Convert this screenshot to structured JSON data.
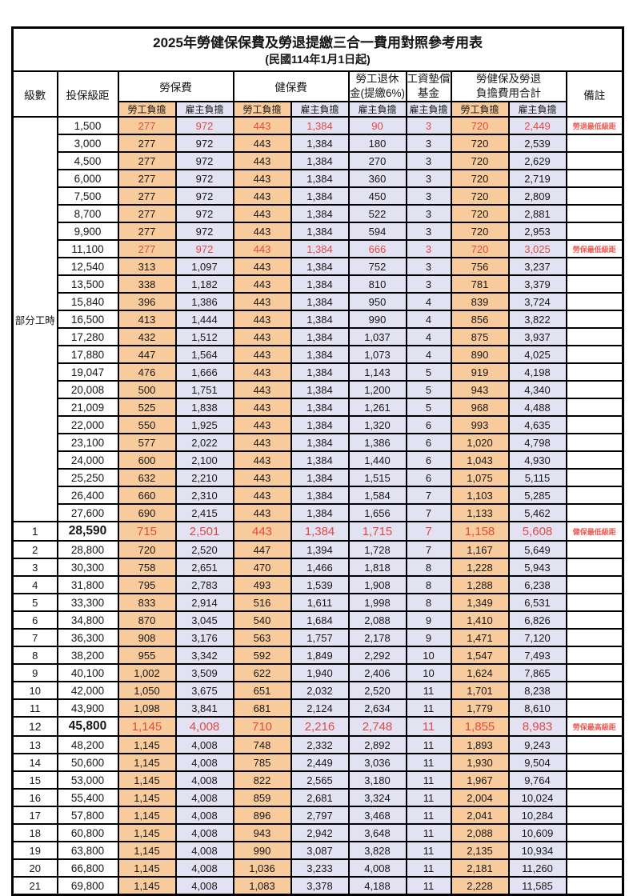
{
  "title": "2025年勞健保保費及勞退提繳三合一費用對照參考用表",
  "subtitle": "(民國114年1月1日起)",
  "colors": {
    "employee_share_bg": "#F8CB9C",
    "employer_share_bg": "#E2E2F2",
    "highlight_text": "#E14A42",
    "remark_text": "#EF5A52",
    "border": "#000000"
  },
  "header": {
    "grade": "級數",
    "bracket": "投保級距",
    "labor_fee": "勞保費",
    "health_fee": "健保費",
    "pension_line1": "勞工退休",
    "pension_line2": "金(提繳6%)",
    "arrears_line1": "工資墊償",
    "arrears_line2": "基金",
    "total_line1": "勞健保及勞退",
    "total_line2": "負擔費用合計",
    "remark": "備註",
    "employee_share": "勞工負擔",
    "employer_share": "雇主負擔"
  },
  "section_label": "部分工時",
  "section_rowspan": 23,
  "rows": [
    {
      "g": "",
      "b": "1,500",
      "v": [
        "277",
        "972",
        "443",
        "1,384",
        "90",
        "3",
        "720",
        "2,449"
      ],
      "r": "勞退最低級距",
      "hl": true,
      "big": false
    },
    {
      "g": "",
      "b": "3,000",
      "v": [
        "277",
        "972",
        "443",
        "1,384",
        "180",
        "3",
        "720",
        "2,539"
      ],
      "r": "",
      "hl": false,
      "big": false
    },
    {
      "g": "",
      "b": "4,500",
      "v": [
        "277",
        "972",
        "443",
        "1,384",
        "270",
        "3",
        "720",
        "2,629"
      ],
      "r": "",
      "hl": false,
      "big": false
    },
    {
      "g": "",
      "b": "6,000",
      "v": [
        "277",
        "972",
        "443",
        "1,384",
        "360",
        "3",
        "720",
        "2,719"
      ],
      "r": "",
      "hl": false,
      "big": false
    },
    {
      "g": "",
      "b": "7,500",
      "v": [
        "277",
        "972",
        "443",
        "1,384",
        "450",
        "3",
        "720",
        "2,809"
      ],
      "r": "",
      "hl": false,
      "big": false
    },
    {
      "g": "",
      "b": "8,700",
      "v": [
        "277",
        "972",
        "443",
        "1,384",
        "522",
        "3",
        "720",
        "2,881"
      ],
      "r": "",
      "hl": false,
      "big": false
    },
    {
      "g": "",
      "b": "9,900",
      "v": [
        "277",
        "972",
        "443",
        "1,384",
        "594",
        "3",
        "720",
        "2,953"
      ],
      "r": "",
      "hl": false,
      "big": false
    },
    {
      "g": "",
      "b": "11,100",
      "v": [
        "277",
        "972",
        "443",
        "1,384",
        "666",
        "3",
        "720",
        "3,025"
      ],
      "r": "勞保最低級距",
      "hl": true,
      "big": false
    },
    {
      "g": "",
      "b": "12,540",
      "v": [
        "313",
        "1,097",
        "443",
        "1,384",
        "752",
        "3",
        "756",
        "3,237"
      ],
      "r": "",
      "hl": false,
      "big": false
    },
    {
      "g": "",
      "b": "13,500",
      "v": [
        "338",
        "1,182",
        "443",
        "1,384",
        "810",
        "3",
        "781",
        "3,379"
      ],
      "r": "",
      "hl": false,
      "big": false
    },
    {
      "g": "",
      "b": "15,840",
      "v": [
        "396",
        "1,386",
        "443",
        "1,384",
        "950",
        "4",
        "839",
        "3,724"
      ],
      "r": "",
      "hl": false,
      "big": false
    },
    {
      "g": "",
      "b": "16,500",
      "v": [
        "413",
        "1,444",
        "443",
        "1,384",
        "990",
        "4",
        "856",
        "3,822"
      ],
      "r": "",
      "hl": false,
      "big": false
    },
    {
      "g": "",
      "b": "17,280",
      "v": [
        "432",
        "1,512",
        "443",
        "1,384",
        "1,037",
        "4",
        "875",
        "3,937"
      ],
      "r": "",
      "hl": false,
      "big": false
    },
    {
      "g": "",
      "b": "17,880",
      "v": [
        "447",
        "1,564",
        "443",
        "1,384",
        "1,073",
        "4",
        "890",
        "4,025"
      ],
      "r": "",
      "hl": false,
      "big": false
    },
    {
      "g": "",
      "b": "19,047",
      "v": [
        "476",
        "1,666",
        "443",
        "1,384",
        "1,143",
        "5",
        "919",
        "4,198"
      ],
      "r": "",
      "hl": false,
      "big": false
    },
    {
      "g": "",
      "b": "20,008",
      "v": [
        "500",
        "1,751",
        "443",
        "1,384",
        "1,200",
        "5",
        "943",
        "4,340"
      ],
      "r": "",
      "hl": false,
      "big": false
    },
    {
      "g": "",
      "b": "21,009",
      "v": [
        "525",
        "1,838",
        "443",
        "1,384",
        "1,261",
        "5",
        "968",
        "4,488"
      ],
      "r": "",
      "hl": false,
      "big": false
    },
    {
      "g": "",
      "b": "22,000",
      "v": [
        "550",
        "1,925",
        "443",
        "1,384",
        "1,320",
        "6",
        "993",
        "4,635"
      ],
      "r": "",
      "hl": false,
      "big": false
    },
    {
      "g": "",
      "b": "23,100",
      "v": [
        "577",
        "2,022",
        "443",
        "1,384",
        "1,386",
        "6",
        "1,020",
        "4,798"
      ],
      "r": "",
      "hl": false,
      "big": false
    },
    {
      "g": "",
      "b": "24,000",
      "v": [
        "600",
        "2,100",
        "443",
        "1,384",
        "1,440",
        "6",
        "1,043",
        "4,930"
      ],
      "r": "",
      "hl": false,
      "big": false
    },
    {
      "g": "",
      "b": "25,250",
      "v": [
        "632",
        "2,210",
        "443",
        "1,384",
        "1,515",
        "6",
        "1,075",
        "5,115"
      ],
      "r": "",
      "hl": false,
      "big": false
    },
    {
      "g": "",
      "b": "26,400",
      "v": [
        "660",
        "2,310",
        "443",
        "1,384",
        "1,584",
        "7",
        "1,103",
        "5,285"
      ],
      "r": "",
      "hl": false,
      "big": false
    },
    {
      "g": "",
      "b": "27,600",
      "v": [
        "690",
        "2,415",
        "443",
        "1,384",
        "1,656",
        "7",
        "1,133",
        "5,462"
      ],
      "r": "",
      "hl": false,
      "big": false
    },
    {
      "g": "1",
      "b": "28,590",
      "v": [
        "715",
        "2,501",
        "443",
        "1,384",
        "1,715",
        "7",
        "1,158",
        "5,608"
      ],
      "r": "健保最低級距",
      "hl": true,
      "big": true
    },
    {
      "g": "2",
      "b": "28,800",
      "v": [
        "720",
        "2,520",
        "447",
        "1,394",
        "1,728",
        "7",
        "1,167",
        "5,649"
      ],
      "r": "",
      "hl": false,
      "big": false
    },
    {
      "g": "3",
      "b": "30,300",
      "v": [
        "758",
        "2,651",
        "470",
        "1,466",
        "1,818",
        "8",
        "1,228",
        "5,943"
      ],
      "r": "",
      "hl": false,
      "big": false
    },
    {
      "g": "4",
      "b": "31,800",
      "v": [
        "795",
        "2,783",
        "493",
        "1,539",
        "1,908",
        "8",
        "1,288",
        "6,238"
      ],
      "r": "",
      "hl": false,
      "big": false
    },
    {
      "g": "5",
      "b": "33,300",
      "v": [
        "833",
        "2,914",
        "516",
        "1,611",
        "1,998",
        "8",
        "1,349",
        "6,531"
      ],
      "r": "",
      "hl": false,
      "big": false
    },
    {
      "g": "6",
      "b": "34,800",
      "v": [
        "870",
        "3,045",
        "540",
        "1,684",
        "2,088",
        "9",
        "1,410",
        "6,826"
      ],
      "r": "",
      "hl": false,
      "big": false
    },
    {
      "g": "7",
      "b": "36,300",
      "v": [
        "908",
        "3,176",
        "563",
        "1,757",
        "2,178",
        "9",
        "1,471",
        "7,120"
      ],
      "r": "",
      "hl": false,
      "big": false
    },
    {
      "g": "8",
      "b": "38,200",
      "v": [
        "955",
        "3,342",
        "592",
        "1,849",
        "2,292",
        "10",
        "1,547",
        "7,493"
      ],
      "r": "",
      "hl": false,
      "big": false
    },
    {
      "g": "9",
      "b": "40,100",
      "v": [
        "1,002",
        "3,509",
        "622",
        "1,940",
        "2,406",
        "10",
        "1,624",
        "7,865"
      ],
      "r": "",
      "hl": false,
      "big": false
    },
    {
      "g": "10",
      "b": "42,000",
      "v": [
        "1,050",
        "3,675",
        "651",
        "2,032",
        "2,520",
        "11",
        "1,701",
        "8,238"
      ],
      "r": "",
      "hl": false,
      "big": false
    },
    {
      "g": "11",
      "b": "43,900",
      "v": [
        "1,098",
        "3,841",
        "681",
        "2,124",
        "2,634",
        "11",
        "1,779",
        "8,610"
      ],
      "r": "",
      "hl": false,
      "big": false
    },
    {
      "g": "12",
      "b": "45,800",
      "v": [
        "1,145",
        "4,008",
        "710",
        "2,216",
        "2,748",
        "11",
        "1,855",
        "8,983"
      ],
      "r": "勞保最高級距",
      "hl": true,
      "big": true
    },
    {
      "g": "13",
      "b": "48,200",
      "v": [
        "1,145",
        "4,008",
        "748",
        "2,332",
        "2,892",
        "11",
        "1,893",
        "9,243"
      ],
      "r": "",
      "hl": false,
      "big": false
    },
    {
      "g": "14",
      "b": "50,600",
      "v": [
        "1,145",
        "4,008",
        "785",
        "2,449",
        "3,036",
        "11",
        "1,930",
        "9,504"
      ],
      "r": "",
      "hl": false,
      "big": false
    },
    {
      "g": "15",
      "b": "53,000",
      "v": [
        "1,145",
        "4,008",
        "822",
        "2,565",
        "3,180",
        "11",
        "1,967",
        "9,764"
      ],
      "r": "",
      "hl": false,
      "big": false
    },
    {
      "g": "16",
      "b": "55,400",
      "v": [
        "1,145",
        "4,008",
        "859",
        "2,681",
        "3,324",
        "11",
        "2,004",
        "10,024"
      ],
      "r": "",
      "hl": false,
      "big": false
    },
    {
      "g": "17",
      "b": "57,800",
      "v": [
        "1,145",
        "4,008",
        "896",
        "2,797",
        "3,468",
        "11",
        "2,041",
        "10,284"
      ],
      "r": "",
      "hl": false,
      "big": false
    },
    {
      "g": "18",
      "b": "60,800",
      "v": [
        "1,145",
        "4,008",
        "943",
        "2,942",
        "3,648",
        "11",
        "2,088",
        "10,609"
      ],
      "r": "",
      "hl": false,
      "big": false
    },
    {
      "g": "19",
      "b": "63,800",
      "v": [
        "1,145",
        "4,008",
        "990",
        "3,087",
        "3,828",
        "11",
        "2,135",
        "10,934"
      ],
      "r": "",
      "hl": false,
      "big": false
    },
    {
      "g": "20",
      "b": "66,800",
      "v": [
        "1,145",
        "4,008",
        "1,036",
        "3,233",
        "4,008",
        "11",
        "2,181",
        "11,260"
      ],
      "r": "",
      "hl": false,
      "big": false
    },
    {
      "g": "21",
      "b": "69,800",
      "v": [
        "1,145",
        "4,008",
        "1,083",
        "3,378",
        "4,188",
        "11",
        "2,228",
        "11,585"
      ],
      "r": "",
      "hl": false,
      "big": false
    }
  ],
  "value_column_shares": [
    "employee",
    "employer",
    "employee",
    "employer",
    "employer",
    "employer",
    "employee",
    "employer"
  ]
}
